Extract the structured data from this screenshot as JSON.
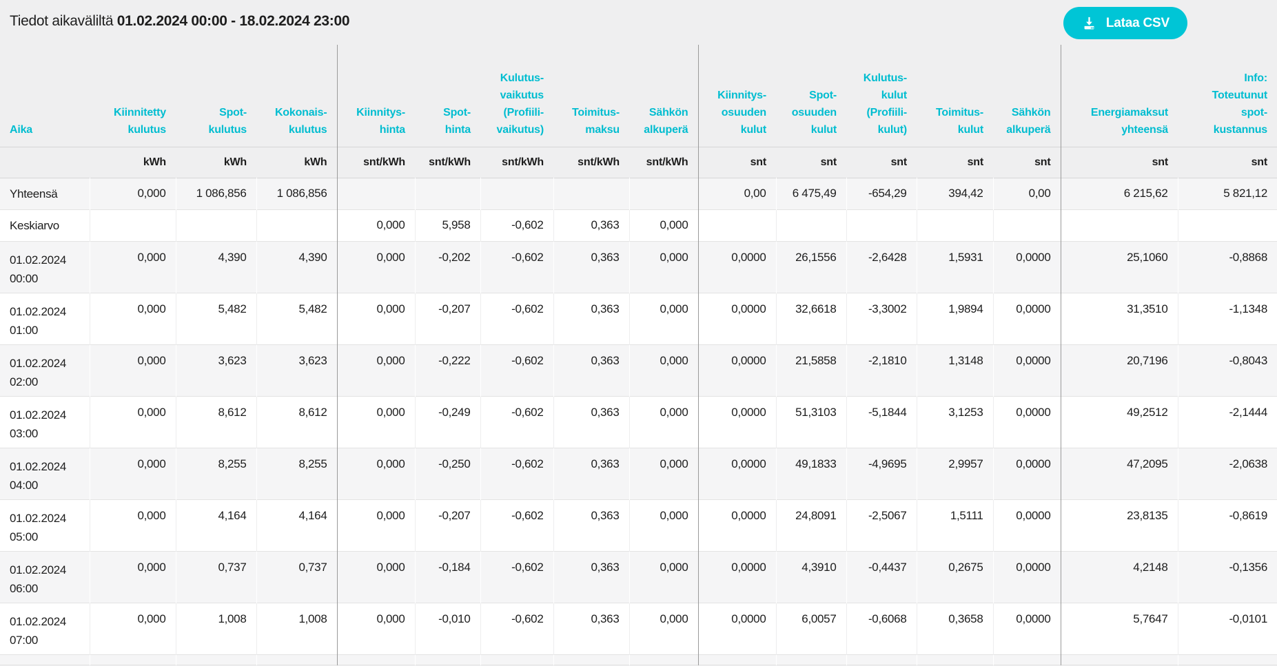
{
  "title": {
    "prefix": "Tiedot aikaväliltä ",
    "range": "01.02.2024 00:00 - 18.02.2024 23:00"
  },
  "toolbar": {
    "download_csv_label": "Lataa CSV",
    "download_icon": "download-arrow-into-tray"
  },
  "colors": {
    "accent": "#00bdd0",
    "button": "#00c5d6",
    "text": "#1d1d1d",
    "page_bg": "#efeff0",
    "row_alt": "#f5f5f6",
    "divider": "#9a9a9a"
  },
  "table": {
    "columns": [
      {
        "id": "aika",
        "header_lines": [
          "Aika"
        ],
        "unit": ""
      },
      {
        "id": "kiinnitetty-kulutus",
        "header_lines": [
          "Kiinnitetty",
          "kulutus"
        ],
        "unit": "kWh"
      },
      {
        "id": "spot-kulutus",
        "header_lines": [
          "Spot-",
          "kulutus"
        ],
        "unit": "kWh"
      },
      {
        "id": "kokonais-kulutus",
        "header_lines": [
          "Kokonais-",
          "kulutus"
        ],
        "unit": "kWh"
      },
      {
        "id": "kiinnitys-hinta",
        "header_lines": [
          "Kiinnitys-",
          "hinta"
        ],
        "unit": "snt/kWh"
      },
      {
        "id": "spot-hinta",
        "header_lines": [
          "Spot-",
          "hinta"
        ],
        "unit": "snt/kWh"
      },
      {
        "id": "kulutus-vaikutus",
        "header_lines": [
          "Kulutus-",
          "vaikutus",
          "(Profiili-",
          "vaikutus)"
        ],
        "unit": "snt/kWh"
      },
      {
        "id": "toimitus-maksu",
        "header_lines": [
          "Toimitus-",
          "maksu"
        ],
        "unit": "snt/kWh"
      },
      {
        "id": "sahkon-alkupera-hinta",
        "header_lines": [
          "Sähkön",
          "alkuperä"
        ],
        "unit": "snt/kWh"
      },
      {
        "id": "kiinnitys-osuuden-kulut",
        "header_lines": [
          "Kiinnitys-",
          "osuuden",
          "kulut"
        ],
        "unit": "snt"
      },
      {
        "id": "spot-osuuden-kulut",
        "header_lines": [
          "Spot-",
          "osuuden",
          "kulut"
        ],
        "unit": "snt"
      },
      {
        "id": "kulutus-kulut",
        "header_lines": [
          "Kulutus-",
          "kulut",
          "(Profiili-",
          "kulut)"
        ],
        "unit": "snt"
      },
      {
        "id": "toimitus-kulut",
        "header_lines": [
          "Toimitus-",
          "kulut"
        ],
        "unit": "snt"
      },
      {
        "id": "sahkon-alkupera-kulut",
        "header_lines": [
          "Sähkön",
          "alkuperä"
        ],
        "unit": "snt"
      },
      {
        "id": "energiamaksut-yhteensa",
        "header_lines": [
          "Energiamaksut",
          "yhteensä"
        ],
        "unit": "snt"
      },
      {
        "id": "info-toteutunut-spot",
        "header_lines": [
          "Info:",
          "Toteutunut",
          "spot-",
          "kustannus"
        ],
        "unit": "snt"
      }
    ],
    "rows": [
      {
        "type": "summary",
        "label_lines": [
          "Yhteensä"
        ],
        "values": [
          "0,000",
          "1 086,856",
          "1 086,856",
          "",
          "",
          "",
          "",
          "",
          "0,00",
          "6 475,49",
          "-654,29",
          "394,42",
          "0,00",
          "6 215,62",
          "5 821,12"
        ]
      },
      {
        "type": "summary",
        "label_lines": [
          "Keskiarvo"
        ],
        "values": [
          "",
          "",
          "",
          "0,000",
          "5,958",
          "-0,602",
          "0,363",
          "0,000",
          "",
          "",
          "",
          "",
          "",
          "",
          ""
        ]
      },
      {
        "type": "data",
        "label_lines": [
          "01.02.2024",
          "00:00"
        ],
        "values": [
          "0,000",
          "4,390",
          "4,390",
          "0,000",
          "-0,202",
          "-0,602",
          "0,363",
          "0,000",
          "0,0000",
          "26,1556",
          "-2,6428",
          "1,5931",
          "0,0000",
          "25,1060",
          "-0,8868"
        ]
      },
      {
        "type": "data",
        "label_lines": [
          "01.02.2024",
          "01:00"
        ],
        "values": [
          "0,000",
          "5,482",
          "5,482",
          "0,000",
          "-0,207",
          "-0,602",
          "0,363",
          "0,000",
          "0,0000",
          "32,6618",
          "-3,3002",
          "1,9894",
          "0,0000",
          "31,3510",
          "-1,1348"
        ]
      },
      {
        "type": "data",
        "label_lines": [
          "01.02.2024",
          "02:00"
        ],
        "values": [
          "0,000",
          "3,623",
          "3,623",
          "0,000",
          "-0,222",
          "-0,602",
          "0,363",
          "0,000",
          "0,0000",
          "21,5858",
          "-2,1810",
          "1,3148",
          "0,0000",
          "20,7196",
          "-0,8043"
        ]
      },
      {
        "type": "data",
        "label_lines": [
          "01.02.2024",
          "03:00"
        ],
        "values": [
          "0,000",
          "8,612",
          "8,612",
          "0,000",
          "-0,249",
          "-0,602",
          "0,363",
          "0,000",
          "0,0000",
          "51,3103",
          "-5,1844",
          "3,1253",
          "0,0000",
          "49,2512",
          "-2,1444"
        ]
      },
      {
        "type": "data",
        "label_lines": [
          "01.02.2024",
          "04:00"
        ],
        "values": [
          "0,000",
          "8,255",
          "8,255",
          "0,000",
          "-0,250",
          "-0,602",
          "0,363",
          "0,000",
          "0,0000",
          "49,1833",
          "-4,9695",
          "2,9957",
          "0,0000",
          "47,2095",
          "-2,0638"
        ]
      },
      {
        "type": "data",
        "label_lines": [
          "01.02.2024",
          "05:00"
        ],
        "values": [
          "0,000",
          "4,164",
          "4,164",
          "0,000",
          "-0,207",
          "-0,602",
          "0,363",
          "0,000",
          "0,0000",
          "24,8091",
          "-2,5067",
          "1,5111",
          "0,0000",
          "23,8135",
          "-0,8619"
        ]
      },
      {
        "type": "data",
        "label_lines": [
          "01.02.2024",
          "06:00"
        ],
        "values": [
          "0,000",
          "0,737",
          "0,737",
          "0,000",
          "-0,184",
          "-0,602",
          "0,363",
          "0,000",
          "0,0000",
          "4,3910",
          "-0,4437",
          "0,2675",
          "0,0000",
          "4,2148",
          "-0,1356"
        ]
      },
      {
        "type": "data",
        "label_lines": [
          "01.02.2024",
          "07:00"
        ],
        "values": [
          "0,000",
          "1,008",
          "1,008",
          "0,000",
          "-0,010",
          "-0,602",
          "0,363",
          "0,000",
          "0,0000",
          "6,0057",
          "-0,6068",
          "0,3658",
          "0,0000",
          "5,7647",
          "-0,0101"
        ]
      }
    ]
  }
}
